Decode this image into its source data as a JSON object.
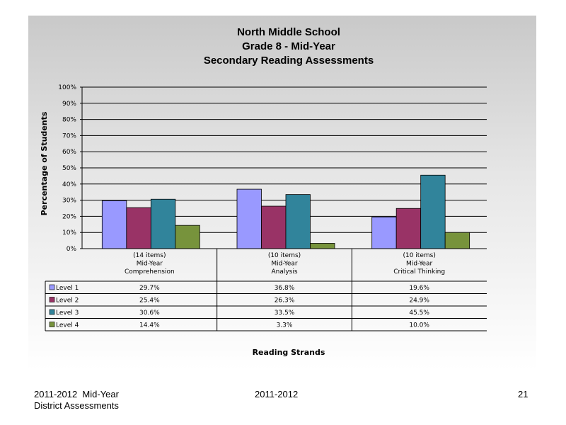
{
  "chart_data": {
    "type": "bar",
    "title_lines": [
      "North Middle School",
      "Grade 8 - Mid-Year",
      "Secondary Reading Assessments"
    ],
    "ylabel": "Percentage of Students",
    "xlabel": "Reading Strands",
    "ylim": [
      0,
      100
    ],
    "y_ticks": [
      "0%",
      "10%",
      "20%",
      "30%",
      "40%",
      "50%",
      "60%",
      "70%",
      "80%",
      "90%",
      "100%"
    ],
    "grid": true,
    "categories": [
      [
        "(14 items)",
        "Mid-Year",
        "Comprehension"
      ],
      [
        "(10 items)",
        "Mid-Year",
        "Analysis"
      ],
      [
        "(10 items)",
        "Mid-Year",
        "Critical Thinking"
      ]
    ],
    "series": [
      {
        "name": "Level 1",
        "color": "#9999ff",
        "values": [
          29.7,
          36.8,
          19.6
        ],
        "labels": [
          "29.7%",
          "36.8%",
          "19.6%"
        ]
      },
      {
        "name": "Level 2",
        "color": "#993366",
        "values": [
          25.4,
          26.3,
          24.9
        ],
        "labels": [
          "25.4%",
          "26.3%",
          "24.9%"
        ]
      },
      {
        "name": "Level 3",
        "color": "#31849b",
        "values": [
          30.6,
          33.5,
          45.5
        ],
        "labels": [
          "30.6%",
          "33.5%",
          "45.5%"
        ]
      },
      {
        "name": "Level 4",
        "color": "#77933c",
        "values": [
          14.4,
          3.3,
          10.0
        ],
        "labels": [
          "14.4%",
          "3.3%",
          "10.0%"
        ]
      }
    ]
  },
  "footer": {
    "left_line1": "2011-2012  Mid-Year",
    "left_line2": "District Assessments",
    "center": "2011-2012",
    "page_number": "21"
  }
}
